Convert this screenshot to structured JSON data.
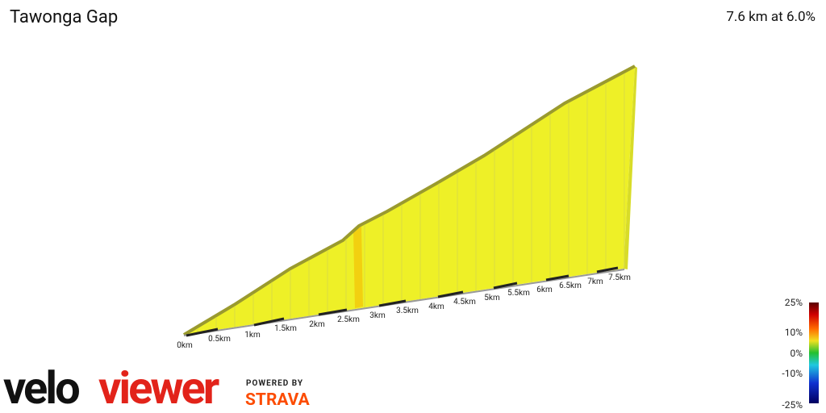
{
  "header": {
    "title": "Tawonga Gap",
    "summary": "7.6 km at 6.0%"
  },
  "profile": {
    "distance_labels": [
      "0km",
      "0.5km",
      "1km",
      "1.5km",
      "2km",
      "2.5km",
      "3km",
      "3.5km",
      "4km",
      "4.5km",
      "5km",
      "5.5km",
      "6km",
      "6.5km",
      "7km",
      "7.5km"
    ]
  },
  "legend": {
    "labels": [
      "25%",
      "10%",
      "0%",
      "-10%",
      "-25%"
    ]
  },
  "branding": {
    "logo_part1": "velo",
    "logo_part2": "viewer",
    "powered_by": "POWERED BY",
    "strava": "STRAVA"
  }
}
